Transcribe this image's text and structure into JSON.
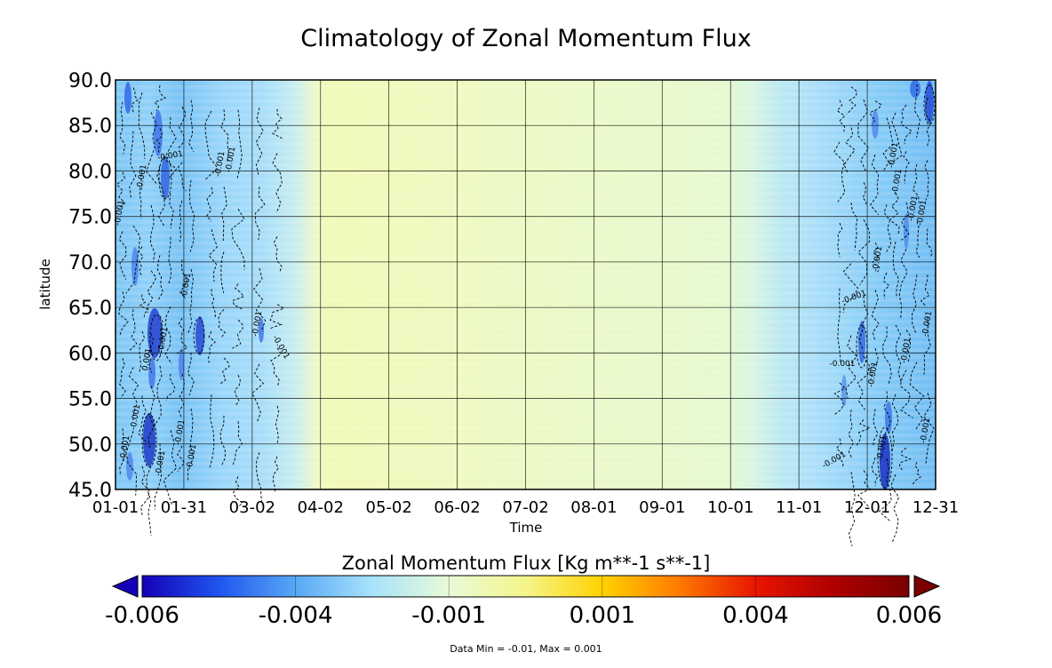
{
  "chart_data": {
    "type": "heatmap",
    "title": "Climatology of Zonal Momentum Flux",
    "xlabel": "Time",
    "ylabel": "latitude",
    "x_ticks": [
      "01-01",
      "01-31",
      "03-02",
      "04-02",
      "05-02",
      "06-02",
      "07-02",
      "08-01",
      "09-01",
      "10-01",
      "11-01",
      "12-01",
      "12-31"
    ],
    "y_ticks": [
      "45.0",
      "50.0",
      "55.0",
      "60.0",
      "65.0",
      "70.0",
      "75.0",
      "80.0",
      "85.0",
      "90.0"
    ],
    "ylim": [
      45,
      90
    ],
    "grid": true,
    "colorbar": {
      "title": "Zonal Momentum Flux [Kg m**-1 s**-1]",
      "ticks": [
        "-0.006",
        "-0.004",
        "-0.001",
        "0.001",
        "0.004",
        "0.006"
      ],
      "range": [
        -0.006,
        0.006
      ],
      "colors": [
        "#1400b8",
        "#1f55ee",
        "#58a8f5",
        "#a8e2fb",
        "#e8fbd8",
        "#f5f58a",
        "#ffd200",
        "#ff7a00",
        "#e81500",
        "#b00000",
        "#7a0000"
      ],
      "extend_low_color": "#1400b8",
      "extend_high_color": "#7a0000"
    },
    "data_note": "Data Min = -0.01, Max = 0.001",
    "contour_labels": [
      {
        "text": "-0.001",
        "x": 143,
        "y": 505,
        "r": -80
      },
      {
        "text": "-0.001",
        "x": 155,
        "y": 470,
        "r": -80
      },
      {
        "text": "-0.001",
        "x": 183,
        "y": 522,
        "r": -80
      },
      {
        "text": "-0.001",
        "x": 205,
        "y": 487,
        "r": -80
      },
      {
        "text": "-0.001",
        "x": 218,
        "y": 515,
        "r": -80
      },
      {
        "text": "0.001",
        "x": 168,
        "y": 405,
        "r": -80
      },
      {
        "text": "-0.001",
        "x": 186,
        "y": 383,
        "r": -80
      },
      {
        "text": "-0.001",
        "x": 212,
        "y": 322,
        "r": -80
      },
      {
        "text": "-0.001",
        "x": 192,
        "y": 178,
        "r": -10
      },
      {
        "text": "-0.001",
        "x": 162,
        "y": 200,
        "r": -80
      },
      {
        "text": "-0.001",
        "x": 250,
        "y": 185,
        "r": -80
      },
      {
        "text": "-0.001",
        "x": 262,
        "y": 180,
        "r": -80
      },
      {
        "text": "-0.001",
        "x": 137,
        "y": 240,
        "r": -80
      },
      {
        "text": "-0.001",
        "x": 292,
        "y": 365,
        "r": -80
      },
      {
        "text": "-0.001",
        "x": 314,
        "y": 392,
        "r": 60
      },
      {
        "text": "-0.001",
        "x": 948,
        "y": 412,
        "r": 0
      },
      {
        "text": "-0.001",
        "x": 940,
        "y": 520,
        "r": -30
      },
      {
        "text": "-0.001",
        "x": 962,
        "y": 337,
        "r": -20
      },
      {
        "text": "-0.001",
        "x": 985,
        "y": 422,
        "r": -80
      },
      {
        "text": "-0.001",
        "x": 990,
        "y": 292,
        "r": -80
      },
      {
        "text": "-0.001",
        "x": 1008,
        "y": 175,
        "r": -80
      },
      {
        "text": "-0.001",
        "x": 1012,
        "y": 205,
        "r": -80
      },
      {
        "text": "-0.001",
        "x": 1030,
        "y": 235,
        "r": -80
      },
      {
        "text": "-0.001",
        "x": 1040,
        "y": 240,
        "r": -80
      },
      {
        "text": "-0.001",
        "x": 1046,
        "y": 365,
        "r": -80
      },
      {
        "text": "-0.001",
        "x": 1022,
        "y": 395,
        "r": -80
      },
      {
        "text": "-0.001",
        "x": 1044,
        "y": 485,
        "r": -80
      },
      {
        "text": "-0.001",
        "x": 995,
        "y": 505,
        "r": -80
      }
    ]
  }
}
